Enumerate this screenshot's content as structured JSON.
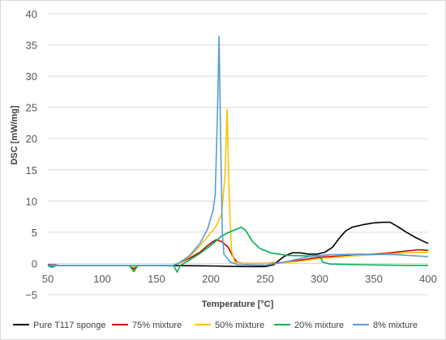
{
  "chart_data": {
    "type": "line",
    "title": "",
    "xlabel": "Temperature [°C]",
    "ylabel": "DSC [mW/mg]",
    "xlim": [
      50,
      400
    ],
    "ylim": [
      -5,
      40
    ],
    "x_ticks": [
      "50",
      "100",
      "150",
      "200",
      "250",
      "300",
      "350",
      "400"
    ],
    "y_ticks": [
      "−5",
      "0",
      "5",
      "10",
      "15",
      "20",
      "25",
      "30",
      "35",
      "40"
    ],
    "grid": "horizontal",
    "legend_position": "bottom",
    "series": [
      {
        "name": "Pure T117 sponge",
        "color": "#000000",
        "points": [
          [
            50,
            -0.2
          ],
          [
            60,
            -0.3
          ],
          [
            100,
            -0.3
          ],
          [
            150,
            -0.3
          ],
          [
            165,
            -0.35
          ],
          [
            200,
            -0.4
          ],
          [
            230,
            -0.5
          ],
          [
            250,
            -0.5
          ],
          [
            258,
            -0.2
          ],
          [
            262,
            0.4
          ],
          [
            268,
            1.2
          ],
          [
            275,
            1.7
          ],
          [
            282,
            1.7
          ],
          [
            290,
            1.5
          ],
          [
            298,
            1.5
          ],
          [
            305,
            1.8
          ],
          [
            312,
            2.6
          ],
          [
            318,
            4.0
          ],
          [
            324,
            5.2
          ],
          [
            330,
            5.8
          ],
          [
            340,
            6.2
          ],
          [
            350,
            6.5
          ],
          [
            358,
            6.6
          ],
          [
            365,
            6.6
          ],
          [
            372,
            5.9
          ],
          [
            380,
            5.0
          ],
          [
            388,
            4.2
          ],
          [
            395,
            3.6
          ],
          [
            400,
            3.2
          ]
        ]
      },
      {
        "name": "75% mixture",
        "color": "#c00000",
        "points": [
          [
            50,
            -0.2
          ],
          [
            53,
            -0.5
          ],
          [
            56,
            -0.2
          ],
          [
            60,
            -0.3
          ],
          [
            100,
            -0.3
          ],
          [
            125,
            -0.3
          ],
          [
            129,
            -0.9
          ],
          [
            133,
            -0.3
          ],
          [
            150,
            -0.3
          ],
          [
            165,
            -0.3
          ],
          [
            170,
            0.0
          ],
          [
            180,
            0.8
          ],
          [
            190,
            1.8
          ],
          [
            198,
            3.0
          ],
          [
            205,
            3.8
          ],
          [
            210,
            3.5
          ],
          [
            216,
            2.6
          ],
          [
            220,
            1.2
          ],
          [
            224,
            0.2
          ],
          [
            230,
            0.0
          ],
          [
            250,
            0.0
          ],
          [
            270,
            0.2
          ],
          [
            300,
            1.0
          ],
          [
            330,
            1.3
          ],
          [
            360,
            1.6
          ],
          [
            380,
            2.0
          ],
          [
            392,
            2.2
          ],
          [
            400,
            2.1
          ]
        ]
      },
      {
        "name": "50% mixture",
        "color": "#ffc000",
        "points": [
          [
            50,
            -0.3
          ],
          [
            100,
            -0.3
          ],
          [
            125,
            -0.3
          ],
          [
            129,
            -0.6
          ],
          [
            133,
            -0.3
          ],
          [
            150,
            -0.3
          ],
          [
            165,
            -0.3
          ],
          [
            170,
            0.0
          ],
          [
            180,
            1.0
          ],
          [
            190,
            2.8
          ],
          [
            198,
            4.5
          ],
          [
            205,
            6.0
          ],
          [
            210,
            8.0
          ],
          [
            213,
            14.0
          ],
          [
            215,
            24.7
          ],
          [
            217,
            10.0
          ],
          [
            219,
            2.0
          ],
          [
            222,
            0.2
          ],
          [
            230,
            0.0
          ],
          [
            260,
            0.0
          ],
          [
            280,
            0.3
          ],
          [
            300,
            0.8
          ],
          [
            330,
            1.2
          ],
          [
            360,
            1.5
          ],
          [
            380,
            1.7
          ],
          [
            400,
            1.8
          ]
        ]
      },
      {
        "name": "20% mixture",
        "color": "#00b050",
        "points": [
          [
            50,
            -0.4
          ],
          [
            54,
            -0.6
          ],
          [
            58,
            -0.3
          ],
          [
            100,
            -0.3
          ],
          [
            125,
            -0.3
          ],
          [
            129,
            -1.3
          ],
          [
            133,
            -0.3
          ],
          [
            150,
            -0.3
          ],
          [
            166,
            -0.4
          ],
          [
            169,
            -1.4
          ],
          [
            172,
            -0.3
          ],
          [
            180,
            0.5
          ],
          [
            190,
            1.6
          ],
          [
            200,
            2.9
          ],
          [
            210,
            4.4
          ],
          [
            218,
            5.1
          ],
          [
            224,
            5.5
          ],
          [
            228,
            5.8
          ],
          [
            232,
            5.3
          ],
          [
            238,
            3.6
          ],
          [
            245,
            2.4
          ],
          [
            255,
            1.7
          ],
          [
            270,
            1.3
          ],
          [
            290,
            1.2
          ],
          [
            300,
            1.3
          ],
          [
            303,
            0.2
          ],
          [
            310,
            -0.1
          ],
          [
            340,
            -0.2
          ],
          [
            380,
            -0.3
          ],
          [
            400,
            -0.3
          ]
        ]
      },
      {
        "name": "8% mixture",
        "color": "#5b9bd5",
        "points": [
          [
            50,
            -0.3
          ],
          [
            100,
            -0.3
          ],
          [
            150,
            -0.3
          ],
          [
            165,
            -0.3
          ],
          [
            170,
            0.0
          ],
          [
            180,
            1.2
          ],
          [
            190,
            3.2
          ],
          [
            197,
            5.5
          ],
          [
            202,
            8.5
          ],
          [
            204,
            11.0
          ],
          [
            206,
            23.0
          ],
          [
            207.5,
            36.4
          ],
          [
            209,
            20.0
          ],
          [
            210.5,
            5.0
          ],
          [
            212,
            1.5
          ],
          [
            218,
            0.2
          ],
          [
            225,
            -0.2
          ],
          [
            250,
            -0.3
          ],
          [
            270,
            0.3
          ],
          [
            290,
            1.1
          ],
          [
            310,
            1.4
          ],
          [
            340,
            1.5
          ],
          [
            370,
            1.4
          ],
          [
            400,
            1.1
          ]
        ]
      }
    ]
  }
}
